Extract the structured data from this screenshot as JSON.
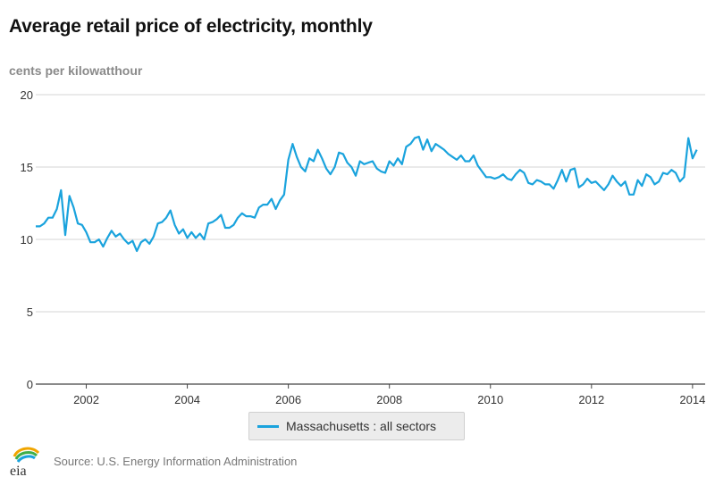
{
  "title": "Average retail price of electricity, monthly",
  "units_label": "cents per kilowatthour",
  "source": "Source: U.S. Energy Information Administration",
  "logo_text": "eia",
  "colors": {
    "series": "#1aa3dd",
    "grid": "#d4d4d4",
    "axis": "#444444"
  },
  "chart_data": {
    "type": "line",
    "title": "Average retail price of electricity, monthly",
    "ylabel": "cents per kilowatthour",
    "xlabel": "",
    "xlim": [
      2001.0,
      2014.25
    ],
    "ylim": [
      0,
      20
    ],
    "x_ticks": [
      2002,
      2004,
      2006,
      2008,
      2010,
      2012,
      2014
    ],
    "y_ticks": [
      0,
      5,
      10,
      15,
      20
    ],
    "grid": "horizontal",
    "legend_position": "bottom-center",
    "series": [
      {
        "name": "Massachusetts : all sectors",
        "start": "2001-01",
        "frequency": "monthly",
        "values": [
          10.9,
          10.9,
          11.1,
          11.5,
          11.5,
          12.1,
          13.4,
          10.3,
          13.0,
          12.2,
          11.1,
          11.0,
          10.5,
          9.8,
          9.8,
          10.0,
          9.5,
          10.1,
          10.6,
          10.2,
          10.4,
          10.0,
          9.7,
          9.9,
          9.2,
          9.8,
          10.0,
          9.7,
          10.2,
          11.1,
          11.2,
          11.5,
          12.0,
          11.0,
          10.4,
          10.7,
          10.1,
          10.5,
          10.1,
          10.4,
          10.0,
          11.1,
          11.2,
          11.4,
          11.7,
          10.8,
          10.8,
          11.0,
          11.5,
          11.8,
          11.6,
          11.6,
          11.5,
          12.2,
          12.4,
          12.4,
          12.8,
          12.1,
          12.7,
          13.1,
          15.5,
          16.6,
          15.7,
          15.0,
          14.7,
          15.6,
          15.4,
          16.2,
          15.6,
          14.9,
          14.5,
          15.0,
          16.0,
          15.9,
          15.3,
          15.0,
          14.4,
          15.4,
          15.2,
          15.3,
          15.4,
          14.9,
          14.7,
          14.6,
          15.4,
          15.1,
          15.6,
          15.2,
          16.4,
          16.6,
          17.0,
          17.1,
          16.2,
          16.9,
          16.1,
          16.6,
          16.4,
          16.2,
          15.9,
          15.7,
          15.5,
          15.8,
          15.4,
          15.4,
          15.8,
          15.1,
          14.7,
          14.3,
          14.3,
          14.2,
          14.3,
          14.5,
          14.2,
          14.1,
          14.5,
          14.8,
          14.6,
          13.9,
          13.8,
          14.1,
          14.0,
          13.8,
          13.8,
          13.5,
          14.1,
          14.8,
          14.0,
          14.8,
          14.9,
          13.6,
          13.8,
          14.2,
          13.9,
          14.0,
          13.7,
          13.4,
          13.8,
          14.4,
          14.0,
          13.7,
          14.0,
          13.1,
          13.1,
          14.1,
          13.7,
          14.5,
          14.3,
          13.8,
          14.0,
          14.6,
          14.5,
          14.8,
          14.6,
          14.0,
          14.3,
          17.0,
          15.6,
          16.2
        ]
      }
    ]
  }
}
